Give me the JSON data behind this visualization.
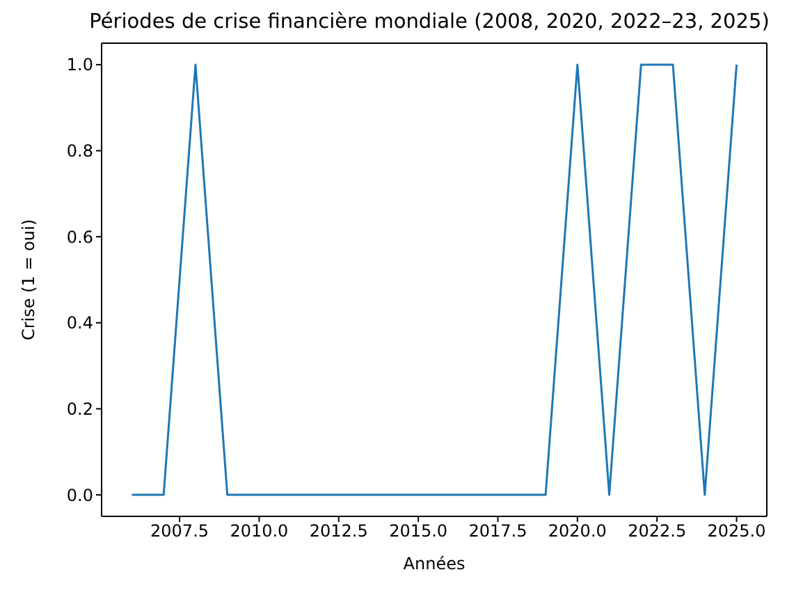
{
  "chart_data": {
    "type": "line",
    "title": "Périodes de crise financière mondiale (2008, 2020, 2022–23, 2025)",
    "xlabel": "Années",
    "ylabel": "Crise (1 = oui)",
    "x": [
      2006,
      2007,
      2008,
      2009,
      2010,
      2011,
      2012,
      2013,
      2014,
      2015,
      2016,
      2017,
      2018,
      2019,
      2020,
      2021,
      2022,
      2023,
      2024,
      2025
    ],
    "series": [
      {
        "color": "#1f77b4",
        "values": [
          0,
          0,
          1,
          0,
          0,
          0,
          0,
          0,
          0,
          0,
          0,
          0,
          0,
          0,
          1,
          0,
          1,
          1,
          0,
          1
        ]
      }
    ],
    "xlim": [
      2005.05,
      2025.95
    ],
    "xticks": [
      {
        "value": 2007.5,
        "label": "2007.5"
      },
      {
        "value": 2010,
        "label": "2010.0"
      },
      {
        "value": 2012.5,
        "label": "2012.5"
      },
      {
        "value": 2015,
        "label": "2015.0"
      },
      {
        "value": 2017.5,
        "label": "2017.5"
      },
      {
        "value": 2020,
        "label": "2020.0"
      },
      {
        "value": 2022.5,
        "label": "2022.5"
      },
      {
        "value": 2025,
        "label": "2025.0"
      }
    ],
    "ylim": [
      -0.05,
      1.05
    ],
    "yticks": [
      {
        "value": 0,
        "label": "0.0"
      },
      {
        "value": 0.2,
        "label": "0.2"
      },
      {
        "value": 0.4,
        "label": "0.4"
      },
      {
        "value": 0.6,
        "label": "0.6"
      },
      {
        "value": 0.8,
        "label": "0.8"
      },
      {
        "value": 1,
        "label": "1.0"
      }
    ],
    "grid": false,
    "legend": false,
    "marker": "none",
    "line_style": "solid"
  }
}
